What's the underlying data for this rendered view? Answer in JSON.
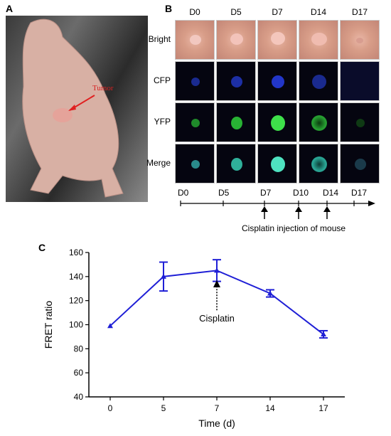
{
  "panels": {
    "a": "A",
    "b": "B",
    "c": "C"
  },
  "photo": {
    "tumor_label": "Tumor"
  },
  "imaging": {
    "columns": [
      "D0",
      "D5",
      "D7",
      "D14",
      "D17"
    ],
    "rows": [
      "Bright",
      "CFP",
      "YFP",
      "Merge"
    ]
  },
  "timeline": {
    "labels": [
      "D0",
      "D5",
      "D7",
      "D10",
      "D14",
      "D17"
    ],
    "injection_note": "Cisplatin injection of mouse"
  },
  "chart_data": {
    "type": "line",
    "x": [
      "0",
      "5",
      "7",
      "14",
      "17"
    ],
    "values": [
      99,
      140,
      145,
      126,
      92
    ],
    "errors": [
      0,
      12,
      9,
      3,
      3
    ],
    "ylim": [
      40,
      160
    ],
    "yticks": [
      40,
      60,
      80,
      100,
      120,
      140,
      160
    ],
    "ylabel": "FRET ratio",
    "xlabel": "Time (d)",
    "annotation": {
      "text": "Cisplatin",
      "x": "7"
    },
    "color": "#1f1fd6"
  }
}
